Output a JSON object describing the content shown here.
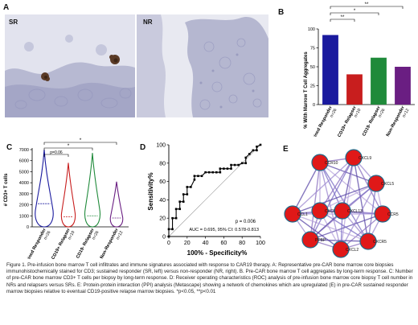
{
  "panel_a": {
    "label": "A",
    "left_tag": "SR",
    "right_tag": "NR"
  },
  "panel_b": {
    "label": "B",
    "chart_data": {
      "type": "bar",
      "ylabel": "% With Marrow T Cell Aggregates",
      "ylim": [
        0,
        100
      ],
      "yticks": [
        0,
        25,
        50,
        75,
        100
      ],
      "categories": [
        "Sustained Responder",
        "CD19+ Relapser",
        "CD19- Relapser",
        "Non-Responder"
      ],
      "ns": [
        "n=26",
        "n=10",
        "n=26",
        "n=12"
      ],
      "values": [
        92,
        40,
        62,
        50
      ],
      "colors": [
        "#1a1a9e",
        "#c81e1e",
        "#1f8a3a",
        "#6a1e82"
      ],
      "significance": [
        {
          "from": 0,
          "to": 3,
          "label": "**"
        },
        {
          "from": 0,
          "to": 2,
          "label": "*"
        },
        {
          "from": 0,
          "to": 1,
          "label": "**"
        }
      ]
    }
  },
  "panel_c": {
    "label": "C",
    "chart_data": {
      "type": "violin",
      "ylabel": "# CD3+ T cells",
      "ylim": [
        0,
        7000
      ],
      "yticks": [
        0,
        1000,
        2000,
        3000,
        4000,
        5000,
        6000,
        7000
      ],
      "categories": [
        "Sustained Responder",
        "CD19+ Relapser",
        "CD19- Relapser",
        "Non-Responder"
      ],
      "ns": [
        "n=26",
        "n=10",
        "n=26",
        "n=12"
      ],
      "colors": [
        "#1a1a9e",
        "#c81e1e",
        "#1f8a3a",
        "#6a1e82"
      ],
      "medians": [
        2100,
        900,
        1000,
        800
      ],
      "maxima": [
        7000,
        5800,
        6700,
        4100
      ],
      "significance": [
        {
          "from": 0,
          "to": 1,
          "label": "p=0.06"
        },
        {
          "from": 0,
          "to": 2,
          "label": "*"
        },
        {
          "from": 0,
          "to": 3,
          "label": "*"
        }
      ]
    }
  },
  "panel_d": {
    "label": "D",
    "chart_data": {
      "type": "line",
      "xlabel": "100% - Specificity%",
      "ylabel": "Sensitivity%",
      "xlim": [
        0,
        100
      ],
      "ylim": [
        0,
        100
      ],
      "ticks": [
        0,
        20,
        40,
        60,
        80,
        100
      ],
      "p_text": "p = 0.006",
      "auc_text": "AUC = 0.695, 95% CI: 0.578-0.813",
      "x": [
        0,
        0,
        4,
        4,
        8,
        8,
        12,
        12,
        16,
        16,
        20,
        20,
        24,
        28,
        28,
        32,
        36,
        40,
        44,
        48,
        52,
        56,
        56,
        60,
        64,
        68,
        68,
        72,
        76,
        80,
        84,
        84,
        88,
        92,
        96,
        96,
        100
      ],
      "y": [
        0,
        8,
        8,
        20,
        20,
        30,
        30,
        38,
        38,
        46,
        46,
        54,
        54,
        62,
        66,
        66,
        66,
        70,
        70,
        70,
        70,
        70,
        74,
        74,
        74,
        74,
        78,
        78,
        78,
        80,
        80,
        86,
        90,
        94,
        94,
        98,
        100
      ]
    }
  },
  "panel_e": {
    "label": "E",
    "nodes": [
      {
        "id": "CCR10",
        "label": "CCR10"
      },
      {
        "id": "CXCL9",
        "label": "CXCL9"
      },
      {
        "id": "CXCL5",
        "label": "CXCL5"
      },
      {
        "id": "CCR5",
        "label": "CCR5"
      },
      {
        "id": "CXCR5",
        "label": "CXCR5"
      },
      {
        "id": "CXCL2",
        "label": "CXCL2"
      },
      {
        "id": "PPBP",
        "label": "PPBP"
      },
      {
        "id": "CCL1",
        "label": "CCL1"
      },
      {
        "id": "CXCL1",
        "label": "CXCL1"
      },
      {
        "id": "CXCL13",
        "label": "CXCL13"
      }
    ]
  },
  "caption": "Figure 1. Pre-infusion bone marrow T cell infiltrates and immune signatures associated with response to CAR19 therapy.   A: Representative pre-CAR bone marrow core biopsies immunohistochemically stained for CD3; sustained responder (SR, left) versus non-responder (NR, right). B. Pre-CAR bone marrow T cell aggregates by long-term response.   C: Number of pre-CAR bone marrow CD3+ T cells per biopsy by long-term response.  D: Receiver operating characteristics (ROC) analysis of pre-infusion bone marrow core biopsy T cell number in NRs and relapsers versus SRs. E: Protein-protein interaction (PPI) analysis (Metascape) showing a network of chemokines which are upregulated (E) in pre-CAR sustained responder marrow biopsies relative to eventual CD19-positive relapse marrow biopsies. *p<0.05, **p<0.01"
}
